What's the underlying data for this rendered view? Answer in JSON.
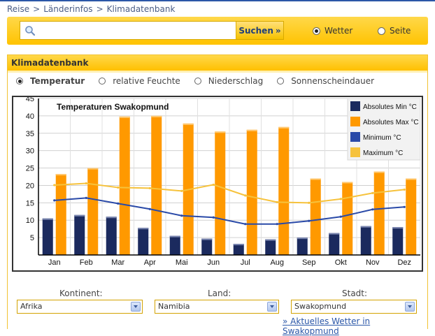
{
  "breadcrumb": [
    "Reise",
    "Länderinfos",
    "Klimadatenbank"
  ],
  "search": {
    "placeholder": "",
    "button_label": "Suchen",
    "button_arrow": "»",
    "scope_options": [
      {
        "label": "Wetter",
        "selected": true
      },
      {
        "label": "Seite",
        "selected": false
      }
    ]
  },
  "panel": {
    "title": "Klimadatenbank",
    "options": [
      {
        "label": "Temperatur",
        "selected": true
      },
      {
        "label": "relative Feuchte",
        "selected": false
      },
      {
        "label": "Niederschlag",
        "selected": false
      },
      {
        "label": "Sonnenscheindauer",
        "selected": false
      }
    ]
  },
  "chart_data": {
    "type": "bar",
    "title": "Temperaturen Swakopmund",
    "categories": [
      "Jan",
      "Feb",
      "Mar",
      "Apr",
      "Mai",
      "Jun",
      "Jul",
      "Aug",
      "Sep",
      "Okt",
      "Nov",
      "Dez"
    ],
    "ylim": [
      0,
      45
    ],
    "yticks": [
      5,
      10,
      15,
      20,
      25,
      30,
      35,
      40,
      45
    ],
    "grid": true,
    "legend_position": "top-right",
    "series": [
      {
        "name": "Absolutes Min °C",
        "kind": "bar",
        "color": "#1b2a5e",
        "values": [
          10.5,
          11.5,
          11,
          7.8,
          5.5,
          4.7,
          3.2,
          4.5,
          5,
          6.3,
          8.3,
          8
        ]
      },
      {
        "name": "Absolutes Max °C",
        "kind": "bar",
        "color": "#ff9900",
        "values": [
          23.3,
          25,
          39.8,
          40,
          37.8,
          35.5,
          36,
          36.8,
          22,
          21,
          24,
          22
        ]
      },
      {
        "name": "Minimum °C",
        "kind": "line",
        "color": "#2a4aa8",
        "values": [
          15.7,
          16.4,
          14.8,
          13.2,
          11.3,
          10.8,
          8.9,
          8.9,
          9.8,
          11,
          13.1,
          13.8
        ]
      },
      {
        "name": "Maximum °C",
        "kind": "line",
        "color": "#f6c23c",
        "values": [
          20.1,
          20.6,
          19.4,
          19.2,
          18.4,
          20.2,
          17.1,
          15.2,
          15,
          16.1,
          17.8,
          18.8
        ]
      }
    ]
  },
  "filters": {
    "continent": {
      "label": "Kontinent:",
      "value": "Afrika"
    },
    "country": {
      "label": "Land:",
      "value": "Namibia"
    },
    "city": {
      "label": "Stadt:",
      "value": "Swakopmund"
    }
  },
  "weather_link": {
    "prefix": "»",
    "label": "Aktuelles Wetter in Swakopmund"
  },
  "colors": {
    "accent": "#ffc300",
    "link": "#2b57a8"
  }
}
